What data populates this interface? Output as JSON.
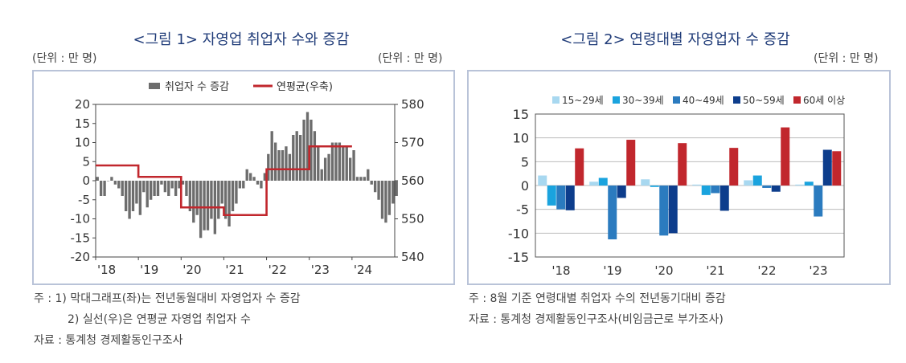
{
  "fig1": {
    "title": "<그림 1> 자영업 취업자 수와 증감",
    "unit_left": "(단위 : 만 명)",
    "unit_right": "(단위 : 만 명)",
    "notes": [
      "주 : 1) 막대그래프(좌)는 전년동월대비 자영업자 수 증감",
      "2) 실선(우)은 연평균 자영업 취업자 수",
      "자료 : 통계청 경제활동인구조사"
    ]
  },
  "fig2": {
    "title": "<그림 2> 연령대별 자영업자 수 증감",
    "unit": "(단위 : 만 명)",
    "notes": [
      "주 : 8월 기준 연령대별 취업자 수의 전년동기대비 증감",
      "자료 : 통계청 경제활동인구조사(비임금근로 부가조사)"
    ]
  },
  "chart_data": [
    {
      "type": "bar",
      "legend": [
        "취업자 수 증감",
        "연평균(우축)"
      ],
      "legend_placement": "top",
      "x_ticks": [
        "'18",
        "'19",
        "'20",
        "'21",
        "'22",
        "'23",
        "'24"
      ],
      "ylim_left": [
        -20,
        20
      ],
      "yticks_left": [
        -20,
        -15,
        -10,
        -5,
        0,
        5,
        10,
        15,
        20
      ],
      "ylim_right": [
        540,
        580
      ],
      "yticks_right": [
        540,
        550,
        560,
        570,
        580
      ],
      "grid": false,
      "colors": {
        "bar": "#6d6d6d",
        "line": "#c1272d"
      },
      "bar_series": {
        "name": "취업자 수 증감",
        "start": "2018-01",
        "values": [
          1,
          -4,
          -4,
          0,
          1,
          -1,
          -2,
          -4,
          -8,
          -10,
          -8,
          -6,
          -9,
          -3,
          -7,
          -5,
          -4,
          -4,
          -1,
          -3,
          -4,
          -2,
          -4,
          -2,
          -1,
          -4,
          -8,
          -11,
          -9,
          -15,
          -13,
          -13,
          -10,
          -14,
          -10,
          -6,
          -10,
          -12,
          -8,
          -6,
          -2,
          -2,
          3,
          2,
          1,
          -1,
          -2,
          2,
          7,
          13,
          10,
          8,
          8,
          9,
          7,
          12,
          13,
          12,
          16,
          18,
          16,
          13,
          9,
          3,
          6,
          7,
          10,
          10,
          10,
          9,
          9,
          6,
          8,
          1,
          1,
          1,
          3,
          -1,
          -3,
          -5,
          -10,
          -11,
          -9,
          -6,
          -4
        ]
      },
      "line_series": {
        "name": "연평균(우축)",
        "values_by_year": [
          {
            "year": 2018,
            "value": 564
          },
          {
            "year": 2019,
            "value": 561
          },
          {
            "year": 2020,
            "value": 553
          },
          {
            "year": 2021,
            "value": 551
          },
          {
            "year": 2022,
            "value": 563
          },
          {
            "year": 2023,
            "value": 569
          }
        ]
      }
    },
    {
      "type": "bar",
      "categories": [
        "'18",
        "'19",
        "'20",
        "'21",
        "'22",
        "'23"
      ],
      "ylim": [
        -15,
        15
      ],
      "yticks": [
        -15,
        -10,
        -5,
        0,
        5,
        10,
        15
      ],
      "grid": true,
      "legend_placement": "top",
      "series": [
        {
          "name": "15~29세",
          "color": "#a8d8f0",
          "values": [
            2.1,
            0.8,
            1.3,
            0.2,
            1.1,
            0.2
          ]
        },
        {
          "name": "30~39세",
          "color": "#1aa3de",
          "values": [
            -4.2,
            1.6,
            -0.3,
            -2.0,
            2.1,
            0.8
          ]
        },
        {
          "name": "40~49세",
          "color": "#2b7bbf",
          "values": [
            -5.0,
            -11.3,
            -10.5,
            -1.6,
            -0.5,
            -6.5
          ]
        },
        {
          "name": "50~59세",
          "color": "#0d3d8c",
          "values": [
            -5.2,
            -2.6,
            -10.0,
            -5.3,
            -1.3,
            7.5
          ]
        },
        {
          "name": "60세 이상",
          "color": "#c1272d",
          "values": [
            7.8,
            9.6,
            8.9,
            7.9,
            12.2,
            7.2
          ]
        }
      ]
    }
  ]
}
